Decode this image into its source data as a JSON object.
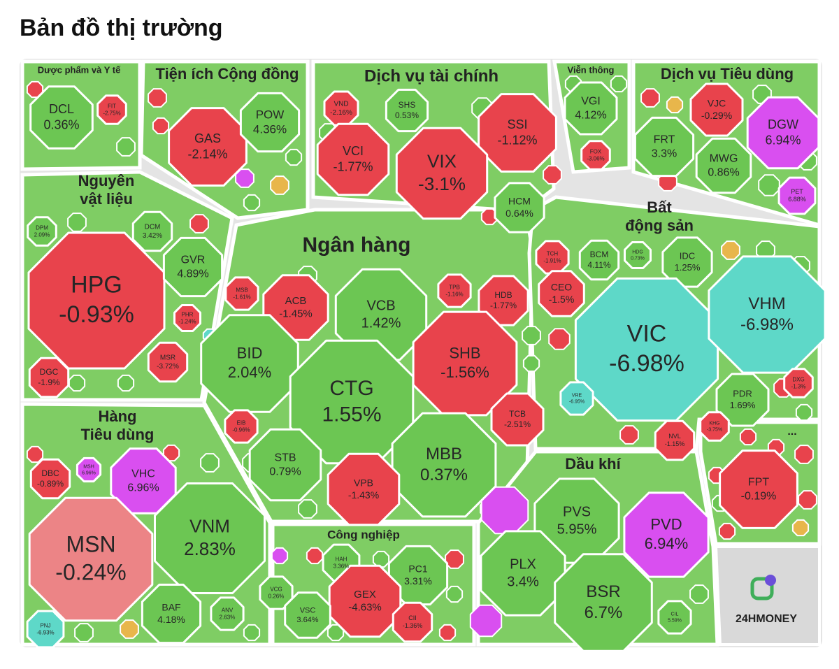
{
  "header": {
    "title": "Bản đồ thị trường"
  },
  "sectors": [
    {
      "title_lines": [
        "Dược phẩm và Y tế"
      ],
      "stocks": [
        {
          "ticker": "DCL",
          "change": "0.36%",
          "color": "#6cc653"
        },
        {
          "ticker": "FIT",
          "change": "-2.75%",
          "color": "#e8434c"
        }
      ]
    },
    {
      "title_lines": [
        "Tiện ích Cộng đồng"
      ],
      "stocks": [
        {
          "ticker": "GAS",
          "change": "-2.14%",
          "color": "#e8434c"
        },
        {
          "ticker": "POW",
          "change": "4.36%",
          "color": "#6cc653"
        }
      ]
    },
    {
      "title_lines": [
        "Dịch vụ tài chính"
      ],
      "stocks": [
        {
          "ticker": "VND",
          "change": "-2.16%",
          "color": "#e8434c"
        },
        {
          "ticker": "SHS",
          "change": "0.53%",
          "color": "#6cc653"
        },
        {
          "ticker": "SSI",
          "change": "-1.12%",
          "color": "#e8434c"
        },
        {
          "ticker": "VCI",
          "change": "-1.77%",
          "color": "#e8434c"
        },
        {
          "ticker": "VIX",
          "change": "-3.1%",
          "color": "#e8434c"
        },
        {
          "ticker": "HCM",
          "change": "0.64%",
          "color": "#6cc653"
        }
      ]
    },
    {
      "title_lines": [
        "Viễn thông"
      ],
      "stocks": [
        {
          "ticker": "VGI",
          "change": "4.12%",
          "color": "#6cc653"
        },
        {
          "ticker": "FOX",
          "change": "-3.06%",
          "color": "#e8434c"
        }
      ]
    },
    {
      "title_lines": [
        "Dịch vụ Tiêu dùng"
      ],
      "stocks": [
        {
          "ticker": "VJC",
          "change": "-0.29%",
          "color": "#e8434c"
        },
        {
          "ticker": "DGW",
          "change": "6.94%",
          "color": "#d94ff0"
        },
        {
          "ticker": "FRT",
          "change": "3.3%",
          "color": "#6cc653"
        },
        {
          "ticker": "MWG",
          "change": "0.86%",
          "color": "#6cc653"
        },
        {
          "ticker": "PET",
          "change": "6.88%",
          "color": "#d94ff0"
        }
      ]
    },
    {
      "title_lines": [
        "Nguyên",
        "vật liệu"
      ],
      "stocks": [
        {
          "ticker": "DPM",
          "change": "2.09%",
          "color": "#6cc653"
        },
        {
          "ticker": "DCM",
          "change": "3.42%",
          "color": "#6cc653"
        },
        {
          "ticker": "HPG",
          "change": "-0.93%",
          "color": "#e8434c"
        },
        {
          "ticker": "GVR",
          "change": "4.89%",
          "color": "#6cc653"
        },
        {
          "ticker": "PHR",
          "change": "-1.24%",
          "color": "#e8434c"
        },
        {
          "ticker": "MSR",
          "change": "-3.72%",
          "color": "#e8434c"
        },
        {
          "ticker": "DGC",
          "change": "-1.9%",
          "color": "#e8434c"
        }
      ]
    },
    {
      "title_lines": [
        "Ngân hàng"
      ],
      "stocks": [
        {
          "ticker": "MSB",
          "change": "-1.61%",
          "color": "#e8434c"
        },
        {
          "ticker": "ACB",
          "change": "-1.45%",
          "color": "#e8434c"
        },
        {
          "ticker": "VCB",
          "change": "1.42%",
          "color": "#6cc653"
        },
        {
          "ticker": "TPB",
          "change": "-1.16%",
          "color": "#e8434c"
        },
        {
          "ticker": "HDB",
          "change": "-1.77%",
          "color": "#e8434c"
        },
        {
          "ticker": "BID",
          "change": "2.04%",
          "color": "#6cc653"
        },
        {
          "ticker": "CTG",
          "change": "1.55%",
          "color": "#6cc653"
        },
        {
          "ticker": "SHB",
          "change": "-1.56%",
          "color": "#e8434c"
        },
        {
          "ticker": "EIB",
          "change": "-0.96%",
          "color": "#e8434c"
        },
        {
          "ticker": "STB",
          "change": "0.79%",
          "color": "#6cc653"
        },
        {
          "ticker": "TCB",
          "change": "-2.51%",
          "color": "#e8434c"
        },
        {
          "ticker": "MBB",
          "change": "0.37%",
          "color": "#6cc653"
        },
        {
          "ticker": "VPB",
          "change": "-1.43%",
          "color": "#e8434c"
        }
      ]
    },
    {
      "title_lines": [
        "Bất",
        "động sản"
      ],
      "stocks": [
        {
          "ticker": "TCH",
          "change": "-1.91%",
          "color": "#e8434c"
        },
        {
          "ticker": "BCM",
          "change": "4.11%",
          "color": "#6cc653"
        },
        {
          "ticker": "HDG",
          "change": "0.73%",
          "color": "#6cc653"
        },
        {
          "ticker": "IDC",
          "change": "1.25%",
          "color": "#6cc653"
        },
        {
          "ticker": "CEO",
          "change": "-1.5%",
          "color": "#e8434c"
        },
        {
          "ticker": "VIC",
          "change": "-6.98%",
          "color": "#5ed8c8"
        },
        {
          "ticker": "VHM",
          "change": "-6.98%",
          "color": "#5ed8c8"
        },
        {
          "ticker": "VRE",
          "change": "-6.95%",
          "color": "#5ed8c8"
        },
        {
          "ticker": "PDR",
          "change": "1.69%",
          "color": "#6cc653"
        },
        {
          "ticker": "DXG",
          "change": "-1.3%",
          "color": "#e8434c"
        },
        {
          "ticker": "NVL",
          "change": "-1.15%",
          "color": "#e8434c"
        },
        {
          "ticker": "KHG",
          "change": "-3.75%",
          "color": "#e8434c"
        }
      ]
    },
    {
      "title_lines": [
        "Hàng",
        "Tiêu dùng"
      ],
      "stocks": [
        {
          "ticker": "DBC",
          "change": "-0.89%",
          "color": "#e8434c"
        },
        {
          "ticker": "MSH",
          "change": "6.96%",
          "color": "#d94ff0"
        },
        {
          "ticker": "VHC",
          "change": "6.96%",
          "color": "#d94ff0"
        },
        {
          "ticker": "MSN",
          "change": "-0.24%",
          "color": "#ec8486"
        },
        {
          "ticker": "VNM",
          "change": "2.83%",
          "color": "#6cc653"
        },
        {
          "ticker": "BAF",
          "change": "4.18%",
          "color": "#6cc653"
        },
        {
          "ticker": "ANV",
          "change": "2.63%",
          "color": "#6cc653"
        },
        {
          "ticker": "PNJ",
          "change": "-6.93%",
          "color": "#5ed8c8"
        }
      ]
    },
    {
      "title_lines": [
        "Công nghiệp"
      ],
      "stocks": [
        {
          "ticker": "HAH",
          "change": "3.36%",
          "color": "#6cc653"
        },
        {
          "ticker": "PC1",
          "change": "3.31%",
          "color": "#6cc653"
        },
        {
          "ticker": "VCG",
          "change": "0.26%",
          "color": "#6cc653"
        },
        {
          "ticker": "GEX",
          "change": "-4.63%",
          "color": "#e8434c"
        },
        {
          "ticker": "VSC",
          "change": "3.64%",
          "color": "#6cc653"
        },
        {
          "ticker": "CII",
          "change": "-1.36%",
          "color": "#e8434c"
        }
      ]
    },
    {
      "title_lines": [
        "Dầu khí"
      ],
      "stocks": [
        {
          "ticker": "PVS",
          "change": "5.95%",
          "color": "#6cc653"
        },
        {
          "ticker": "PVD",
          "change": "6.94%",
          "color": "#d94ff0"
        },
        {
          "ticker": "PLX",
          "change": "3.4%",
          "color": "#6cc653"
        },
        {
          "ticker": "BSR",
          "change": "6.7%",
          "color": "#6cc653"
        },
        {
          "ticker": "CIL",
          "change": "5.59%",
          "color": "#6cc653"
        }
      ]
    },
    {
      "title_lines": [
        "..."
      ],
      "stocks": [
        {
          "ticker": "FPT",
          "change": "-0.19%",
          "color": "#e8434c"
        }
      ]
    }
  ],
  "logo": "24HMONEY"
}
